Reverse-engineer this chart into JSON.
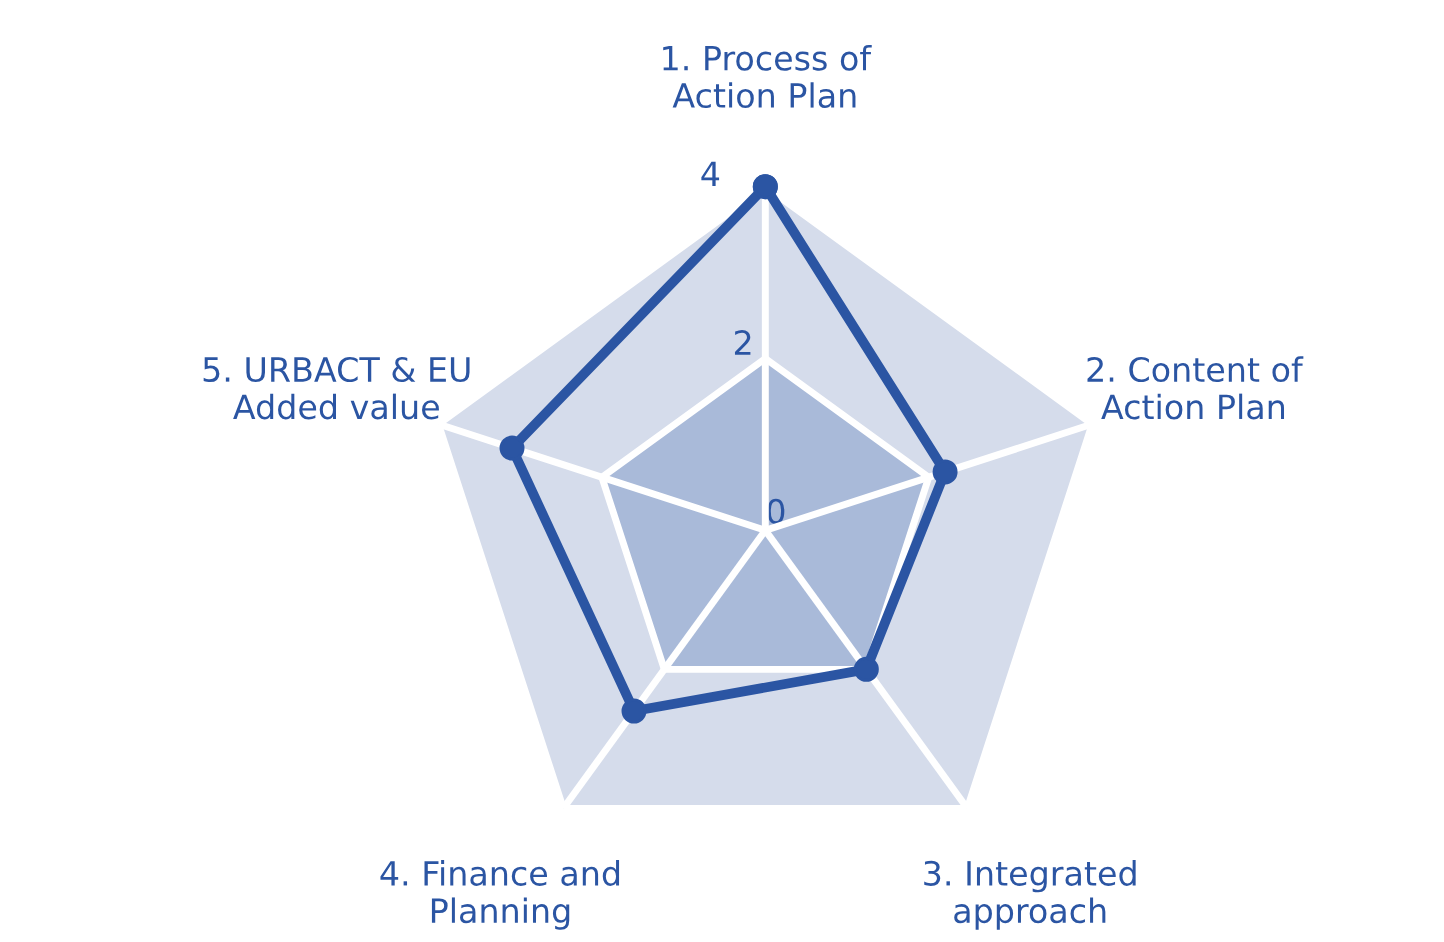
{
  "chart_data": {
    "type": "radar",
    "categories": [
      "1. Process of\nAction Plan",
      "2. Content of\nAction Plan",
      "3. Integrated\napproach",
      "4. Finance and\nPlanning",
      "5. URBACT & EU\nAdded value"
    ],
    "series": [
      {
        "color": "#2b55a3",
        "values": [
          4,
          2.2,
          2,
          2.6,
          3.1
        ]
      }
    ],
    "ylim": [
      0,
      4
    ],
    "yticks": [
      0,
      2,
      4
    ],
    "marker": "circle",
    "grid": true,
    "legend": false
  }
}
